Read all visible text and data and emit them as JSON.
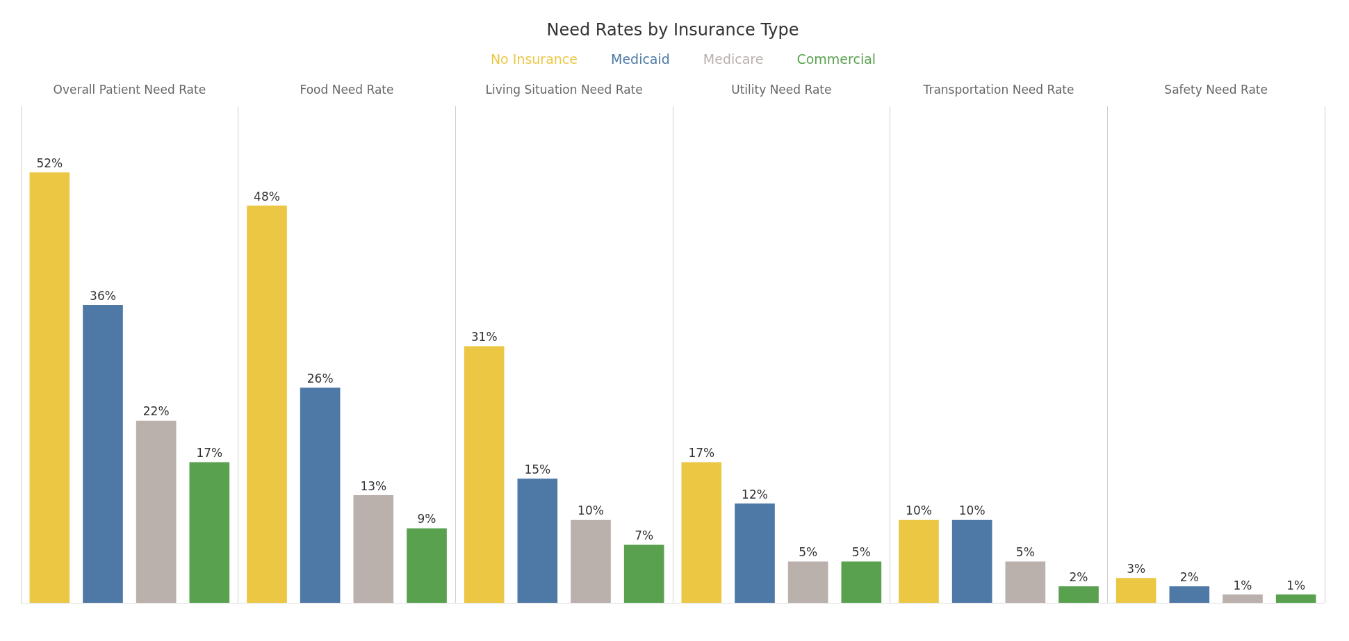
{
  "chart_data": {
    "type": "bar",
    "title": "Need Rates by Insurance Type",
    "categories": [
      "Overall Patient Need Rate",
      "Food Need Rate",
      "Living Situation Need Rate",
      "Utility Need Rate",
      "Transportation Need Rate",
      "Safety Need Rate"
    ],
    "series": [
      {
        "name": "No Insurance",
        "color": "#ebc744",
        "values": [
          52,
          48,
          31,
          17,
          10,
          3
        ],
        "value_labels": [
          "52%",
          "48%",
          "31%",
          "17%",
          "10%",
          "3%"
        ]
      },
      {
        "name": "Medicaid",
        "color": "#4e79a7",
        "values": [
          36,
          26,
          15,
          12,
          10,
          2
        ],
        "value_labels": [
          "36%",
          "26%",
          "15%",
          "12%",
          "10%",
          "2%"
        ]
      },
      {
        "name": "Medicare",
        "color": "#bab0ac",
        "values": [
          22,
          13,
          10,
          5,
          5,
          1
        ],
        "value_labels": [
          "22%",
          "13%",
          "10%",
          "5%",
          "5%",
          "1%"
        ]
      },
      {
        "name": "Commercial",
        "color": "#59a14f",
        "values": [
          17,
          9,
          7,
          5,
          2,
          1
        ],
        "value_labels": [
          "17%",
          "9%",
          "7%",
          "5%",
          "2%",
          "1%"
        ]
      }
    ],
    "grid": "x",
    "legend": "top",
    "tick_labels": "x"
  }
}
